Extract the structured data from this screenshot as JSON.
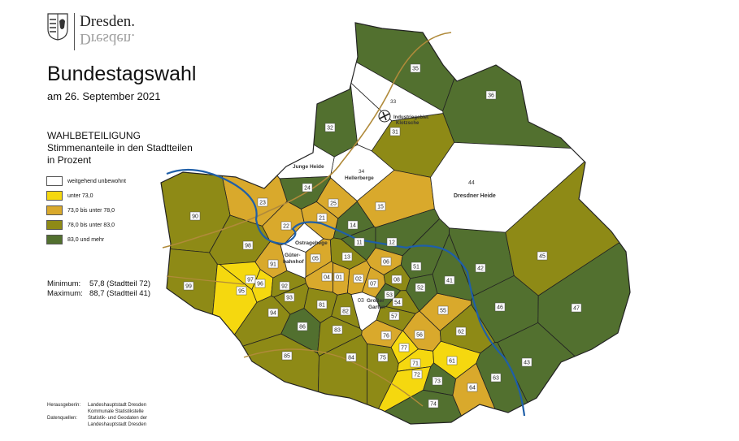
{
  "logo": {
    "wordmark": "Dresden.",
    "mirrored": "Dresden."
  },
  "title": "Bundestagswahl",
  "subtitle": "am 26. September 2021",
  "section": {
    "heading": "WAHLBETEILIGUNG",
    "line1": "Stimmenanteile in den Stadtteilen",
    "line2": "in Prozent"
  },
  "legend": [
    {
      "label": "weitgehend unbewohnt",
      "color": "#ffffff"
    },
    {
      "label": "unter 73,0",
      "color": "#f5d80f"
    },
    {
      "label": "73,0 bis unter 78,0",
      "color": "#d9a92c"
    },
    {
      "label": "78,0 bis unter 83,0",
      "color": "#8e8a16"
    },
    {
      "label": "83,0 und mehr",
      "color": "#52702f"
    }
  ],
  "stats": {
    "min_label": "Minimum:",
    "min_value": "57,8 (Stadtteil 72)",
    "max_label": "Maximum:",
    "max_value": "88,7 (Stadtteil 41)"
  },
  "credits": {
    "publisher_label": "Herausgeberin:",
    "publisher_line1": "Landeshauptstadt Dresden",
    "publisher_line2": "Kommunale Statistikstelle",
    "source_label": "Datenquellen:",
    "source_line1": "Statistik- und Geodaten der",
    "source_line2": "Landeshauptstadt Dresden"
  },
  "map": {
    "colors": {
      "river": "#1f5fa8",
      "road": "#b08a3a",
      "border": "#222222"
    },
    "place_labels": {
      "junge_heide": "Junge Heide",
      "hellerberge_num": "34",
      "hellerberge": "Hellerberge",
      "dresdner_heide_num": "44",
      "dresdner_heide": "Dresdner Heide",
      "industrie1": "Industriegebiet",
      "industrie2": "Klotzsche",
      "ostragehege": "Ostragehege",
      "gueter1": "Güter-",
      "gueter2": "bahnhof",
      "grosser_garten_num": "03",
      "grosser1": "Großer",
      "grosser2": "Garten",
      "n33": "33"
    },
    "districts": [
      {
        "id": "35",
        "cls": 4
      },
      {
        "id": "36",
        "cls": 4
      },
      {
        "id": "32",
        "cls": 4
      },
      {
        "id": "31",
        "cls": 3
      },
      {
        "id": "24",
        "cls": 4
      },
      {
        "id": "23",
        "cls": 2
      },
      {
        "id": "25",
        "cls": 2
      },
      {
        "id": "22",
        "cls": 2
      },
      {
        "id": "21",
        "cls": 2
      },
      {
        "id": "15",
        "cls": 2
      },
      {
        "id": "14",
        "cls": 4
      },
      {
        "id": "11",
        "cls": 4
      },
      {
        "id": "12",
        "cls": 4
      },
      {
        "id": "90",
        "cls": 3
      },
      {
        "id": "98",
        "cls": 3
      },
      {
        "id": "99",
        "cls": 3
      },
      {
        "id": "91",
        "cls": 2
      },
      {
        "id": "97",
        "cls": 1
      },
      {
        "id": "96",
        "cls": 1
      },
      {
        "id": "95",
        "cls": 1
      },
      {
        "id": "92",
        "cls": 3
      },
      {
        "id": "93",
        "cls": 3
      },
      {
        "id": "94",
        "cls": 3
      },
      {
        "id": "05",
        "cls": 2
      },
      {
        "id": "04",
        "cls": 2
      },
      {
        "id": "13",
        "cls": 3
      },
      {
        "id": "01",
        "cls": 2
      },
      {
        "id": "02",
        "cls": 2
      },
      {
        "id": "06",
        "cls": 2
      },
      {
        "id": "07",
        "cls": 2
      },
      {
        "id": "08",
        "cls": 3
      },
      {
        "id": "81",
        "cls": 3
      },
      {
        "id": "82",
        "cls": 3
      },
      {
        "id": "86",
        "cls": 4
      },
      {
        "id": "83",
        "cls": 3
      },
      {
        "id": "85",
        "cls": 3
      },
      {
        "id": "84",
        "cls": 3
      },
      {
        "id": "75",
        "cls": 3
      },
      {
        "id": "76",
        "cls": 2
      },
      {
        "id": "77",
        "cls": 1
      },
      {
        "id": "71",
        "cls": 1
      },
      {
        "id": "72",
        "cls": 1
      },
      {
        "id": "73",
        "cls": 4
      },
      {
        "id": "74",
        "cls": 4
      },
      {
        "id": "53",
        "cls": 4
      },
      {
        "id": "54",
        "cls": 3
      },
      {
        "id": "51",
        "cls": 4
      },
      {
        "id": "52",
        "cls": 4
      },
      {
        "id": "57",
        "cls": 3
      },
      {
        "id": "55",
        "cls": 2
      },
      {
        "id": "56",
        "cls": 2
      },
      {
        "id": "61",
        "cls": 1
      },
      {
        "id": "62",
        "cls": 3
      },
      {
        "id": "64",
        "cls": 2
      },
      {
        "id": "63",
        "cls": 4
      },
      {
        "id": "43",
        "cls": 4
      },
      {
        "id": "46",
        "cls": 4
      },
      {
        "id": "47",
        "cls": 4
      },
      {
        "id": "42",
        "cls": 4
      },
      {
        "id": "41",
        "cls": 4
      },
      {
        "id": "45",
        "cls": 3
      }
    ]
  }
}
